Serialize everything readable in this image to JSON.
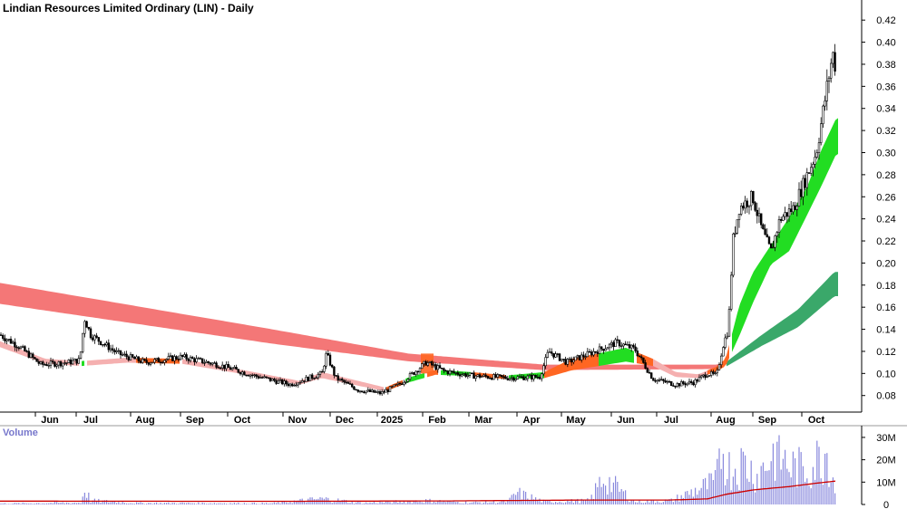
{
  "title": "Lindian Resources Limited Ordinary (LIN) - Daily",
  "volume_label": "Volume",
  "colors": {
    "candle": "#000000",
    "band_long_red": "#f47777",
    "band_long_green": "#3aa86a",
    "band_short_green": "#22dd22",
    "band_short_orange": "#ff6622",
    "band_short_pink": "#f5b0b0",
    "volume_bar": "#8888dd",
    "volume_ma": "#cc0000",
    "axis": "#000000"
  },
  "chart_data": [
    {
      "type": "candlestick",
      "title": "Lindian Resources Limited Ordinary (LIN) - Daily",
      "y_ticks": [
        "0.42",
        "0.40",
        "0.38",
        "0.36",
        "0.34",
        "0.32",
        "0.30",
        "0.28",
        "0.26",
        "0.24",
        "0.22",
        "0.20",
        "0.18",
        "0.16",
        "0.14",
        "0.12",
        "0.10",
        "0.08"
      ],
      "ylim": [
        0.065,
        0.43
      ],
      "x_ticks": [
        "Jun",
        "Jul",
        "Aug",
        "Sep",
        "Oct",
        "Nov",
        "Dec",
        "2025",
        "Feb",
        "Mar",
        "Apr",
        "May",
        "Jun",
        "Jul",
        "Aug",
        "Sep",
        "Oct"
      ],
      "x_tick_positions": [
        55,
        100,
        160,
        215,
        267,
        328,
        380,
        432,
        482,
        533,
        586,
        635,
        690,
        740,
        800,
        846,
        900
      ],
      "price_anchors": [
        [
          0,
          0.135
        ],
        [
          20,
          0.125
        ],
        [
          45,
          0.108
        ],
        [
          75,
          0.11
        ],
        [
          88,
          0.112
        ],
        [
          93,
          0.15
        ],
        [
          100,
          0.135
        ],
        [
          130,
          0.118
        ],
        [
          160,
          0.11
        ],
        [
          200,
          0.115
        ],
        [
          240,
          0.108
        ],
        [
          280,
          0.098
        ],
        [
          320,
          0.09
        ],
        [
          355,
          0.1
        ],
        [
          360,
          0.118
        ],
        [
          370,
          0.096
        ],
        [
          395,
          0.085
        ],
        [
          420,
          0.082
        ],
        [
          440,
          0.09
        ],
        [
          455,
          0.1
        ],
        [
          470,
          0.11
        ],
        [
          490,
          0.102
        ],
        [
          520,
          0.098
        ],
        [
          560,
          0.096
        ],
        [
          595,
          0.097
        ],
        [
          605,
          0.12
        ],
        [
          625,
          0.11
        ],
        [
          650,
          0.118
        ],
        [
          680,
          0.128
        ],
        [
          700,
          0.122
        ],
        [
          720,
          0.095
        ],
        [
          745,
          0.09
        ],
        [
          765,
          0.092
        ],
        [
          780,
          0.1
        ],
        [
          790,
          0.098
        ],
        [
          797,
          0.125
        ],
        [
          803,
          0.14
        ],
        [
          808,
          0.22
        ],
        [
          815,
          0.25
        ],
        [
          830,
          0.26
        ],
        [
          840,
          0.23
        ],
        [
          850,
          0.21
        ],
        [
          860,
          0.24
        ],
        [
          875,
          0.25
        ],
        [
          890,
          0.28
        ],
        [
          900,
          0.3
        ],
        [
          910,
          0.35
        ],
        [
          918,
          0.39
        ],
        [
          922,
          0.375
        ]
      ],
      "long_band": {
        "x_range": [
          0,
          925
        ],
        "upper_anchors": [
          [
            0,
            0.182
          ],
          [
            300,
            0.14
          ],
          [
            450,
            0.118
          ],
          [
            600,
            0.108
          ],
          [
            790,
            0.108
          ],
          [
            800,
            0.11
          ],
          [
            840,
            0.135
          ],
          [
            880,
            0.158
          ],
          [
            920,
            0.192
          ]
        ],
        "lower_anchors": [
          [
            0,
            0.163
          ],
          [
            300,
            0.127
          ],
          [
            450,
            0.111
          ],
          [
            600,
            0.103
          ],
          [
            790,
            0.104
          ],
          [
            800,
            0.106
          ],
          [
            840,
            0.125
          ],
          [
            880,
            0.142
          ],
          [
            920,
            0.17
          ]
        ]
      },
      "short_band": {
        "upper_anchors": [
          [
            0,
            0.128
          ],
          [
            50,
            0.112
          ],
          [
            90,
            0.11
          ],
          [
            140,
            0.113
          ],
          [
            200,
            0.112
          ],
          [
            280,
            0.1
          ],
          [
            330,
            0.092
          ],
          [
            355,
            0.1
          ],
          [
            390,
            0.093
          ],
          [
            425,
            0.086
          ],
          [
            450,
            0.095
          ],
          [
            480,
            0.102
          ],
          [
            520,
            0.1
          ],
          [
            560,
            0.097
          ],
          [
            600,
            0.1
          ],
          [
            630,
            0.112
          ],
          [
            660,
            0.117
          ],
          [
            690,
            0.122
          ],
          [
            720,
            0.112
          ],
          [
            745,
            0.1
          ],
          [
            770,
            0.098
          ],
          [
            790,
            0.105
          ],
          [
            800,
            0.112
          ],
          [
            815,
            0.16
          ],
          [
            830,
            0.19
          ],
          [
            850,
            0.215
          ],
          [
            870,
            0.24
          ],
          [
            890,
            0.268
          ],
          [
            905,
            0.3
          ],
          [
            922,
            0.33
          ]
        ],
        "lower_anchors": [
          [
            0,
            0.125
          ],
          [
            50,
            0.11
          ],
          [
            90,
            0.108
          ],
          [
            140,
            0.111
          ],
          [
            200,
            0.11
          ],
          [
            280,
            0.099
          ],
          [
            330,
            0.091
          ],
          [
            355,
            0.097
          ],
          [
            390,
            0.091
          ],
          [
            425,
            0.085
          ],
          [
            450,
            0.093
          ],
          [
            480,
            0.1
          ],
          [
            520,
            0.099
          ],
          [
            560,
            0.096
          ],
          [
            600,
            0.097
          ],
          [
            630,
            0.104
          ],
          [
            660,
            0.108
          ],
          [
            690,
            0.112
          ],
          [
            720,
            0.108
          ],
          [
            745,
            0.098
          ],
          [
            770,
            0.097
          ],
          [
            790,
            0.103
          ],
          [
            800,
            0.108
          ],
          [
            815,
            0.135
          ],
          [
            830,
            0.165
          ],
          [
            850,
            0.2
          ],
          [
            870,
            0.212
          ],
          [
            890,
            0.245
          ],
          [
            905,
            0.27
          ],
          [
            922,
            0.3
          ]
        ]
      }
    },
    {
      "type": "bar",
      "title": "Volume",
      "y_ticks": [
        "30M",
        "20M",
        "10M",
        "0"
      ],
      "ylim": [
        0,
        32000000
      ],
      "volume_anchors": [
        [
          0,
          0.5
        ],
        [
          90,
          1
        ],
        [
          93,
          9
        ],
        [
          100,
          2
        ],
        [
          150,
          0.8
        ],
        [
          300,
          0.6
        ],
        [
          355,
          3
        ],
        [
          400,
          0.8
        ],
        [
          470,
          2
        ],
        [
          520,
          1
        ],
        [
          560,
          1.5
        ],
        [
          570,
          6
        ],
        [
          600,
          1.5
        ],
        [
          650,
          2
        ],
        [
          665,
          14
        ],
        [
          700,
          1.5
        ],
        [
          740,
          2
        ],
        [
          760,
          6
        ],
        [
          790,
          12
        ],
        [
          795,
          31
        ],
        [
          805,
          18
        ],
        [
          820,
          22
        ],
        [
          835,
          15
        ],
        [
          855,
          28
        ],
        [
          870,
          20
        ],
        [
          890,
          18
        ],
        [
          905,
          25
        ],
        [
          912,
          29
        ],
        [
          922,
          6
        ]
      ],
      "ma_anchors": [
        [
          0,
          1.5
        ],
        [
          300,
          1.4
        ],
        [
          500,
          1.6
        ],
        [
          650,
          2.0
        ],
        [
          740,
          2.0
        ],
        [
          780,
          2.5
        ],
        [
          800,
          4.5
        ],
        [
          830,
          6.5
        ],
        [
          870,
          8
        ],
        [
          900,
          9.5
        ],
        [
          922,
          10.5
        ]
      ]
    }
  ]
}
